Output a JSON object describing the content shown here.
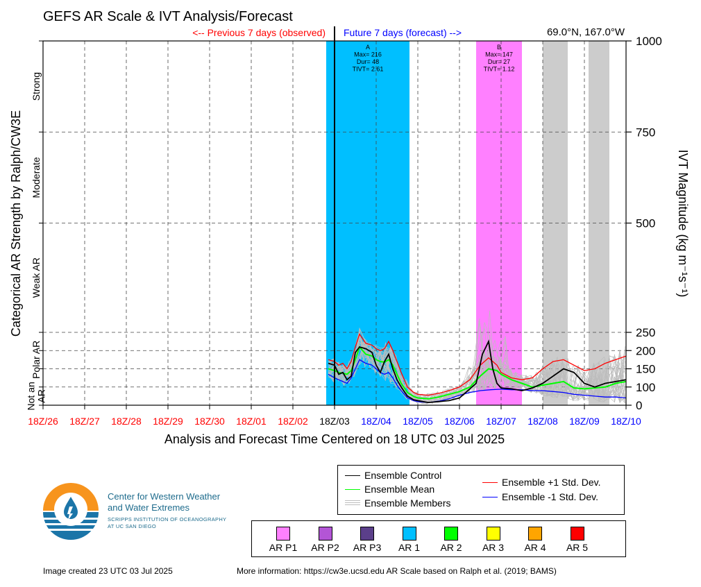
{
  "title": "GEFS AR Scale & IVT Analysis/Forecast",
  "location": "69.0°N, 167.0°W",
  "previous_label": "<-- Previous 7 days (observed)",
  "future_label": "Future 7 days (forecast) -->",
  "xlabel": "Analysis and Forecast Time Centered on 18 UTC 03 Jul 2025",
  "ylabel_left": "Categorical AR Strength by Ralph/CW3E",
  "ylabel_right": "IVT Magnitude (kg m⁻¹s⁻¹)",
  "categories": [
    {
      "label": "Not an AR",
      "lines": [
        "Not an",
        "AR"
      ]
    },
    {
      "label": "Polar AR",
      "lines": [
        "Polar AR"
      ]
    },
    {
      "label": "Weak AR",
      "lines": [
        "Weak AR"
      ]
    },
    {
      "label": "Moderate",
      "lines": [
        "Moderate"
      ]
    },
    {
      "label": "Strong",
      "lines": [
        "Strong"
      ]
    }
  ],
  "right_ticks": [
    "0",
    "100",
    "150",
    "200",
    "250",
    "500",
    "750",
    "1000"
  ],
  "x_ticks": [
    {
      "label": "18Z/26",
      "color": "#ff0000"
    },
    {
      "label": "18Z/27",
      "color": "#ff0000"
    },
    {
      "label": "18Z/28",
      "color": "#ff0000"
    },
    {
      "label": "18Z/29",
      "color": "#ff0000"
    },
    {
      "label": "18Z/30",
      "color": "#ff0000"
    },
    {
      "label": "18Z/01",
      "color": "#ff0000"
    },
    {
      "label": "18Z/02",
      "color": "#ff0000"
    },
    {
      "label": "18Z/03",
      "color": "#000000"
    },
    {
      "label": "18Z/04",
      "color": "#0000ff"
    },
    {
      "label": "18Z/05",
      "color": "#0000ff"
    },
    {
      "label": "18Z/06",
      "color": "#0000ff"
    },
    {
      "label": "18Z/07",
      "color": "#0000ff"
    },
    {
      "label": "18Z/08",
      "color": "#0000ff"
    },
    {
      "label": "18Z/09",
      "color": "#0000ff"
    },
    {
      "label": "18Z/10",
      "color": "#0000ff"
    }
  ],
  "legend": {
    "control": "Ensemble Control",
    "mean": "Ensemble Mean",
    "members": "Ensemble Members",
    "plus_std": "Ensemble +1 Std. Dev.",
    "minus_std": "Ensemble -1 Std. Dev."
  },
  "scale_legend": [
    {
      "label": "AR P1",
      "color": "#ff80ff"
    },
    {
      "label": "AR P2",
      "color": "#b355d6"
    },
    {
      "label": "AR P3",
      "color": "#5b3f8a"
    },
    {
      "label": "AR 1",
      "color": "#00bfff"
    },
    {
      "label": "AR 2",
      "color": "#00ff00"
    },
    {
      "label": "AR 3",
      "color": "#ffff00"
    },
    {
      "label": "AR 4",
      "color": "#ffa500"
    },
    {
      "label": "AR 5",
      "color": "#ff0000"
    }
  ],
  "logo": {
    "line1": "Center for Western Weather",
    "line2": "and Water Extremes",
    "line3": "SCRIPPS INSTITUTION OF OCEANOGRAPHY",
    "line4": "AT UC SAN DIEGO"
  },
  "footer_left": "Image created 23 UTC 03 Jul 2025",
  "footer_right": "More information: https://cw3e.ucsd.edu AR Scale based on Ralph et al. (2019; BAMS)",
  "chart_data": {
    "type": "line",
    "x_range_days": [
      -7,
      7
    ],
    "ylim": [
      0,
      1000
    ],
    "y_display_breaks": [
      [
        0,
        0
      ],
      [
        100,
        0.05
      ],
      [
        150,
        0.1
      ],
      [
        200,
        0.15
      ],
      [
        250,
        0.2
      ],
      [
        500,
        0.5
      ],
      [
        750,
        0.75
      ],
      [
        1000,
        1.0
      ]
    ],
    "events": [
      {
        "label": "A",
        "start": -0.2,
        "end": 1.8,
        "color": "#00bfff",
        "text": [
          "A",
          "Max= 216",
          "Dur= 48",
          "TIVT= 2.61"
        ]
      },
      {
        "label": "B",
        "start": 3.4,
        "end": 4.5,
        "color": "#ff80ff",
        "text": [
          "B",
          "Max= 147",
          "Dur= 27",
          "TIVT= 1.12"
        ]
      }
    ],
    "gray_spans": [
      [
        5.0,
        5.6
      ],
      [
        6.1,
        6.6
      ]
    ],
    "control": {
      "x": [
        -0.15,
        0,
        0.1,
        0.2,
        0.3,
        0.4,
        0.5,
        0.6,
        0.75,
        0.9,
        1.0,
        1.1,
        1.2,
        1.3,
        1.4,
        1.5,
        1.6,
        1.75,
        1.9,
        2.0,
        2.25,
        2.5,
        2.75,
        3.0,
        3.25,
        3.4,
        3.55,
        3.7,
        3.8,
        3.9,
        4.0,
        4.25,
        4.5,
        4.75,
        5.0,
        5.25,
        5.5,
        5.75,
        6.0,
        6.25,
        6.5,
        6.75,
        7.0
      ],
      "y": [
        165,
        160,
        135,
        140,
        120,
        130,
        195,
        210,
        205,
        195,
        160,
        140,
        170,
        190,
        150,
        120,
        100,
        50,
        30,
        25,
        15,
        20,
        25,
        40,
        90,
        110,
        190,
        225,
        150,
        110,
        95,
        90,
        80,
        95,
        110,
        130,
        150,
        140,
        110,
        100,
        110,
        115,
        120
      ]
    },
    "mean": {
      "x": [
        -0.15,
        0,
        0.1,
        0.2,
        0.3,
        0.4,
        0.5,
        0.6,
        0.75,
        0.9,
        1.0,
        1.1,
        1.2,
        1.3,
        1.4,
        1.5,
        1.6,
        1.75,
        1.9,
        2.0,
        2.25,
        2.5,
        2.75,
        3.0,
        3.25,
        3.5,
        3.7,
        3.9,
        4.0,
        4.25,
        4.5,
        4.75,
        5.0,
        5.25,
        5.5,
        5.75,
        6.0,
        6.25,
        6.5,
        6.75,
        7.0
      ],
      "y": [
        150,
        145,
        140,
        138,
        135,
        145,
        175,
        210,
        190,
        185,
        175,
        170,
        168,
        175,
        160,
        135,
        110,
        70,
        48,
        40,
        35,
        45,
        60,
        75,
        100,
        130,
        150,
        145,
        135,
        120,
        110,
        100,
        105,
        110,
        115,
        95,
        90,
        95,
        100,
        110,
        115
      ]
    },
    "plus_std": {
      "x": [
        -0.15,
        0,
        0.1,
        0.2,
        0.3,
        0.4,
        0.5,
        0.6,
        0.75,
        0.9,
        1.0,
        1.1,
        1.2,
        1.3,
        1.4,
        1.5,
        1.6,
        1.75,
        1.9,
        2.0,
        2.25,
        2.5,
        2.75,
        3.0,
        3.25,
        3.5,
        3.7,
        3.9,
        4.0,
        4.25,
        4.5,
        4.75,
        5.0,
        5.25,
        5.5,
        5.75,
        6.0,
        6.25,
        6.5,
        6.75,
        7.0
      ],
      "y": [
        175,
        170,
        160,
        165,
        150,
        170,
        210,
        245,
        220,
        215,
        205,
        200,
        205,
        225,
        200,
        170,
        140,
        100,
        70,
        60,
        55,
        65,
        80,
        100,
        120,
        160,
        180,
        160,
        140,
        125,
        120,
        125,
        150,
        170,
        175,
        160,
        145,
        150,
        165,
        175,
        185
      ]
    },
    "minus_std": {
      "x": [
        -0.15,
        0,
        0.1,
        0.2,
        0.3,
        0.4,
        0.5,
        0.6,
        0.75,
        0.9,
        1.0,
        1.1,
        1.2,
        1.3,
        1.4,
        1.5,
        1.6,
        1.75,
        1.9,
        2.0,
        2.25,
        2.5,
        2.75,
        3.0,
        3.25,
        3.5,
        3.75,
        4.0,
        4.25,
        4.5,
        4.75,
        5.0,
        5.25,
        5.5,
        5.75,
        6.0,
        6.25,
        6.5,
        6.75,
        7.0
      ],
      "y": [
        135,
        125,
        120,
        115,
        110,
        125,
        150,
        175,
        165,
        160,
        150,
        140,
        135,
        140,
        125,
        105,
        80,
        40,
        25,
        20,
        15,
        22,
        35,
        55,
        70,
        80,
        85,
        88,
        85,
        85,
        80,
        80,
        75,
        70,
        60,
        55,
        50,
        45,
        45,
        40
      ]
    },
    "members_count": 30
  }
}
